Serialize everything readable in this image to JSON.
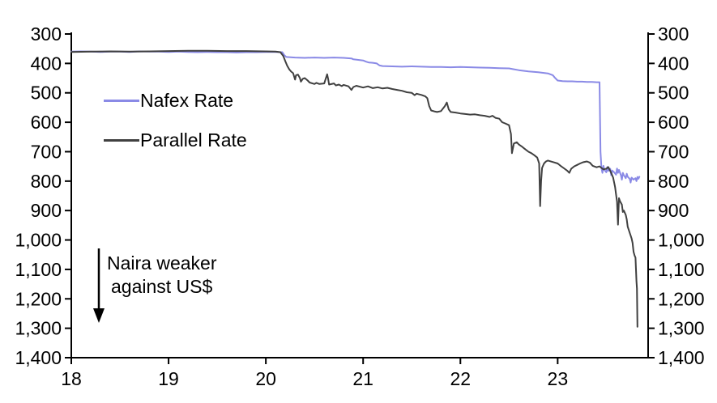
{
  "chart_data": {
    "type": "line",
    "title": "",
    "x_axis": {
      "min": 18,
      "max": 23.93,
      "ticks": [
        18,
        19,
        20,
        21,
        22,
        23
      ],
      "tick_labels": [
        "18",
        "19",
        "20",
        "21",
        "22",
        "23"
      ]
    },
    "y_axis": {
      "min": 300,
      "max": 1400,
      "inverted_weaker_down": true,
      "mirrored_right_axis": true,
      "ticks": [
        300,
        400,
        500,
        600,
        700,
        800,
        900,
        1000,
        1100,
        1200,
        1300,
        1400
      ],
      "tick_labels": [
        "300",
        "400",
        "500",
        "600",
        "700",
        "800",
        "900",
        "1,000",
        "1,100",
        "1,200",
        "1,300",
        "1,400"
      ]
    },
    "series": [
      {
        "name": "Nafex Rate",
        "color": "#8a8ae6",
        "points": [
          [
            18.0,
            360
          ],
          [
            18.1,
            359
          ],
          [
            18.2,
            360
          ],
          [
            18.3,
            361
          ],
          [
            18.4,
            360
          ],
          [
            18.5,
            360
          ],
          [
            18.6,
            361
          ],
          [
            18.7,
            359
          ],
          [
            18.8,
            360
          ],
          [
            18.9,
            360
          ],
          [
            19.0,
            361
          ],
          [
            19.1,
            360
          ],
          [
            19.2,
            361
          ],
          [
            19.3,
            362
          ],
          [
            19.4,
            361
          ],
          [
            19.5,
            362
          ],
          [
            19.6,
            362
          ],
          [
            19.7,
            363
          ],
          [
            19.8,
            362
          ],
          [
            19.9,
            362
          ],
          [
            20.0,
            361
          ],
          [
            20.1,
            361
          ],
          [
            20.17,
            362
          ],
          [
            20.19,
            372
          ],
          [
            20.21,
            378
          ],
          [
            20.3,
            380
          ],
          [
            20.4,
            381
          ],
          [
            20.5,
            380
          ],
          [
            20.6,
            381
          ],
          [
            20.7,
            380
          ],
          [
            20.8,
            381
          ],
          [
            20.88,
            383
          ],
          [
            20.9,
            386
          ],
          [
            21.0,
            390
          ],
          [
            21.03,
            394
          ],
          [
            21.06,
            397
          ],
          [
            21.1,
            398
          ],
          [
            21.14,
            400
          ],
          [
            21.17,
            407
          ],
          [
            21.2,
            409
          ],
          [
            21.3,
            410
          ],
          [
            21.4,
            411
          ],
          [
            21.5,
            410
          ],
          [
            21.6,
            411
          ],
          [
            21.7,
            412
          ],
          [
            21.8,
            412
          ],
          [
            21.9,
            413
          ],
          [
            22.0,
            412
          ],
          [
            22.1,
            413
          ],
          [
            22.2,
            414
          ],
          [
            22.3,
            415
          ],
          [
            22.4,
            416
          ],
          [
            22.5,
            417
          ],
          [
            22.55,
            420
          ],
          [
            22.6,
            423
          ],
          [
            22.7,
            427
          ],
          [
            22.8,
            430
          ],
          [
            22.9,
            434
          ],
          [
            22.95,
            440
          ],
          [
            22.97,
            448
          ],
          [
            23.0,
            458
          ],
          [
            23.05,
            460
          ],
          [
            23.1,
            461
          ],
          [
            23.15,
            461
          ],
          [
            23.2,
            462
          ],
          [
            23.25,
            462
          ],
          [
            23.3,
            463
          ],
          [
            23.35,
            463
          ],
          [
            23.4,
            464
          ],
          [
            23.43,
            464
          ],
          [
            23.44,
            700
          ],
          [
            23.45,
            756
          ],
          [
            23.46,
            772
          ],
          [
            23.47,
            748
          ],
          [
            23.48,
            762
          ],
          [
            23.5,
            770
          ],
          [
            23.51,
            752
          ],
          [
            23.52,
            765
          ],
          [
            23.54,
            758
          ],
          [
            23.55,
            780
          ],
          [
            23.56,
            764
          ],
          [
            23.58,
            770
          ],
          [
            23.6,
            778
          ],
          [
            23.61,
            757
          ],
          [
            23.62,
            772
          ],
          [
            23.63,
            762
          ],
          [
            23.65,
            780
          ],
          [
            23.66,
            795
          ],
          [
            23.67,
            772
          ],
          [
            23.68,
            780
          ],
          [
            23.7,
            790
          ],
          [
            23.71,
            775
          ],
          [
            23.72,
            785
          ],
          [
            23.74,
            792
          ],
          [
            23.75,
            805
          ],
          [
            23.76,
            788
          ],
          [
            23.78,
            795
          ],
          [
            23.8,
            790
          ],
          [
            23.81,
            800
          ],
          [
            23.82,
            786
          ],
          [
            23.83,
            792
          ],
          [
            23.84,
            785
          ]
        ]
      },
      {
        "name": "Parallel Rate",
        "color": "#404040",
        "points": [
          [
            18.0,
            361
          ],
          [
            18.2,
            360
          ],
          [
            18.4,
            359
          ],
          [
            18.6,
            360
          ],
          [
            18.8,
            359
          ],
          [
            19.0,
            358
          ],
          [
            19.2,
            357
          ],
          [
            19.4,
            357
          ],
          [
            19.6,
            358
          ],
          [
            19.8,
            358
          ],
          [
            20.0,
            359
          ],
          [
            20.1,
            360
          ],
          [
            20.15,
            362
          ],
          [
            20.18,
            375
          ],
          [
            20.2,
            392
          ],
          [
            20.22,
            408
          ],
          [
            20.24,
            420
          ],
          [
            20.26,
            428
          ],
          [
            20.28,
            433
          ],
          [
            20.3,
            455
          ],
          [
            20.31,
            440
          ],
          [
            20.33,
            438
          ],
          [
            20.35,
            450
          ],
          [
            20.36,
            462
          ],
          [
            20.38,
            452
          ],
          [
            20.4,
            450
          ],
          [
            20.43,
            458
          ],
          [
            20.45,
            465
          ],
          [
            20.5,
            470
          ],
          [
            20.52,
            466
          ],
          [
            20.55,
            470
          ],
          [
            20.6,
            468
          ],
          [
            20.63,
            437
          ],
          [
            20.64,
            452
          ],
          [
            20.65,
            472
          ],
          [
            20.7,
            468
          ],
          [
            20.72,
            475
          ],
          [
            20.75,
            472
          ],
          [
            20.78,
            477
          ],
          [
            20.8,
            473
          ],
          [
            20.85,
            478
          ],
          [
            20.88,
            490
          ],
          [
            20.9,
            480
          ],
          [
            20.93,
            476
          ],
          [
            21.0,
            482
          ],
          [
            21.05,
            478
          ],
          [
            21.1,
            484
          ],
          [
            21.15,
            481
          ],
          [
            21.2,
            485
          ],
          [
            21.25,
            483
          ],
          [
            21.3,
            487
          ],
          [
            21.35,
            490
          ],
          [
            21.4,
            493
          ],
          [
            21.45,
            498
          ],
          [
            21.5,
            500
          ],
          [
            21.53,
            508
          ],
          [
            21.55,
            503
          ],
          [
            21.6,
            507
          ],
          [
            21.64,
            512
          ],
          [
            21.66,
            518
          ],
          [
            21.68,
            545
          ],
          [
            21.7,
            560
          ],
          [
            21.73,
            563
          ],
          [
            21.76,
            565
          ],
          [
            21.8,
            562
          ],
          [
            21.84,
            545
          ],
          [
            21.86,
            533
          ],
          [
            21.88,
            556
          ],
          [
            21.9,
            565
          ],
          [
            21.95,
            567
          ],
          [
            22.0,
            570
          ],
          [
            22.05,
            572
          ],
          [
            22.1,
            574
          ],
          [
            22.15,
            573
          ],
          [
            22.2,
            576
          ],
          [
            22.25,
            578
          ],
          [
            22.3,
            582
          ],
          [
            22.33,
            578
          ],
          [
            22.36,
            585
          ],
          [
            22.4,
            588
          ],
          [
            22.43,
            600
          ],
          [
            22.46,
            604
          ],
          [
            22.5,
            610
          ],
          [
            22.52,
            640
          ],
          [
            22.53,
            705
          ],
          [
            22.55,
            672
          ],
          [
            22.58,
            668
          ],
          [
            22.6,
            675
          ],
          [
            22.63,
            682
          ],
          [
            22.66,
            690
          ],
          [
            22.7,
            700
          ],
          [
            22.73,
            705
          ],
          [
            22.76,
            712
          ],
          [
            22.79,
            720
          ],
          [
            22.81,
            740
          ],
          [
            22.82,
            885
          ],
          [
            22.83,
            800
          ],
          [
            22.84,
            755
          ],
          [
            22.86,
            740
          ],
          [
            22.88,
            733
          ],
          [
            22.9,
            730
          ],
          [
            22.95,
            735
          ],
          [
            23.0,
            740
          ],
          [
            23.03,
            748
          ],
          [
            23.06,
            755
          ],
          [
            23.1,
            765
          ],
          [
            23.12,
            772
          ],
          [
            23.14,
            758
          ],
          [
            23.17,
            750
          ],
          [
            23.2,
            745
          ],
          [
            23.23,
            740
          ],
          [
            23.26,
            736
          ],
          [
            23.3,
            733
          ],
          [
            23.33,
            737
          ],
          [
            23.36,
            748
          ],
          [
            23.4,
            753
          ],
          [
            23.43,
            750
          ],
          [
            23.45,
            755
          ],
          [
            23.47,
            760
          ],
          [
            23.5,
            758
          ],
          [
            23.52,
            752
          ],
          [
            23.55,
            772
          ],
          [
            23.57,
            788
          ],
          [
            23.59,
            820
          ],
          [
            23.6,
            845
          ],
          [
            23.61,
            870
          ],
          [
            23.62,
            948
          ],
          [
            23.63,
            858
          ],
          [
            23.64,
            868
          ],
          [
            23.66,
            880
          ],
          [
            23.67,
            905
          ],
          [
            23.68,
            900
          ],
          [
            23.7,
            915
          ],
          [
            23.71,
            930
          ],
          [
            23.72,
            955
          ],
          [
            23.73,
            965
          ],
          [
            23.74,
            975
          ],
          [
            23.75,
            985
          ],
          [
            23.76,
            995
          ],
          [
            23.77,
            1010
          ],
          [
            23.78,
            1040
          ],
          [
            23.79,
            1052
          ],
          [
            23.8,
            1060
          ],
          [
            23.805,
            1100
          ],
          [
            23.81,
            1140
          ],
          [
            23.815,
            1165
          ],
          [
            23.82,
            1295
          ]
        ]
      }
    ],
    "annotation": {
      "line1": "Naira weaker",
      "line2": "against US$",
      "arrow_direction": "down"
    },
    "legend_position": "upper-left-inside",
    "grid": false
  },
  "colors": {
    "axis": "#000000",
    "text": "#000000",
    "background": "#ffffff",
    "nafex": "#8a8ae6",
    "parallel": "#404040"
  }
}
